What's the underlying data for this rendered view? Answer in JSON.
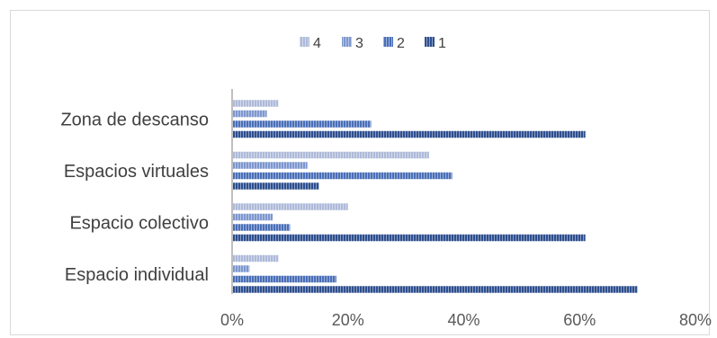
{
  "chart_data": {
    "type": "bar",
    "orientation": "horizontal",
    "categories": [
      "Espacio individual",
      "Espacio colectivo",
      "Espacios virtuales",
      "Zona de descanso"
    ],
    "series": [
      {
        "name": "1",
        "values": [
          0.7,
          0.61,
          0.15,
          0.61
        ],
        "color": "#2e4f8f"
      },
      {
        "name": "2",
        "values": [
          0.18,
          0.1,
          0.38,
          0.24
        ],
        "color": "#4a6fb8"
      },
      {
        "name": "3",
        "values": [
          0.03,
          0.07,
          0.13,
          0.06
        ],
        "color": "#7d97cf"
      },
      {
        "name": "4",
        "values": [
          0.08,
          0.2,
          0.34,
          0.08
        ],
        "color": "#aebad9"
      }
    ],
    "legend_order": [
      "4",
      "3",
      "2",
      "1"
    ],
    "xlim": [
      0,
      0.8
    ],
    "x_ticks": [
      "0%",
      "20%",
      "40%",
      "60%",
      "80%"
    ],
    "legend_position": "top",
    "grid": false
  }
}
